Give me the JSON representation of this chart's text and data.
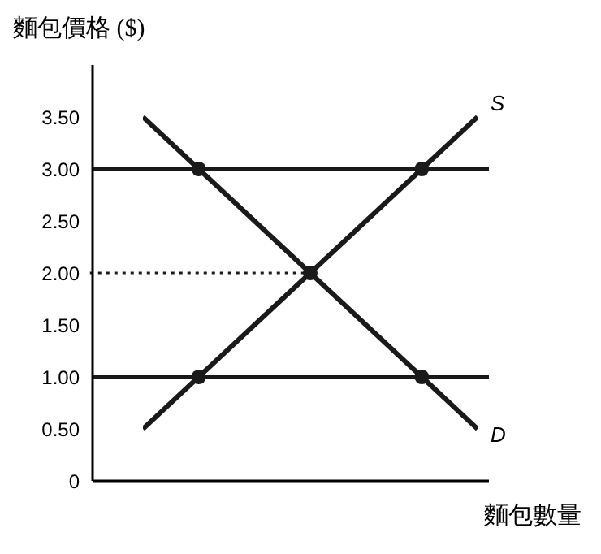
{
  "chart_data": {
    "type": "line",
    "ylabel": "麵包價格 ($)",
    "xlabel": "麵包數量",
    "categories": [
      null,
      null,
      null,
      null,
      null,
      null,
      null
    ],
    "series": [
      {
        "color": "#1a1a1a",
        "values": [
          0.5,
          1.0,
          1.5,
          2.0,
          2.5,
          3.0,
          3.5
        ]
      },
      {
        "color": "#1a1a1a",
        "values": [
          3.5,
          3.0,
          2.5,
          2.0,
          1.5,
          1.0,
          0.5
        ]
      },
      {
        "type": "scatter",
        "marker": "circle",
        "color": "#1a1a1a",
        "values": [
          null,
          3.0,
          null,
          2.0,
          null,
          3.0,
          null
        ]
      },
      {
        "type": "scatter",
        "marker": "circle",
        "color": "#1a1a1a",
        "values": [
          null,
          1.0,
          null,
          null,
          null,
          1.0,
          null
        ]
      }
    ],
    "annotations": [
      "S",
      "D"
    ],
    "ylim": [
      0,
      4
    ],
    "yticks": [
      0,
      {
        "value": 0.5,
        "label": "0.50"
      },
      {
        "value": 1,
        "label": "1.00"
      },
      {
        "value": 1.5,
        "label": "1.50"
      },
      {
        "value": 2,
        "label": "2.00"
      },
      {
        "value": 2.5,
        "label": "2.50"
      },
      {
        "value": 3,
        "label": "3.00"
      },
      {
        "value": 3.5,
        "label": "3.50"
      }
    ],
    "tick_labels": "y",
    "ref_lines": [
      {
        "axis": "y",
        "value": 3,
        "color": "#1a1a1a",
        "line_style": "solid"
      },
      {
        "axis": "y",
        "value": 1,
        "color": "#1a1a1a",
        "line_style": "solid"
      },
      {
        "axis": "y",
        "value": 2,
        "color": "#1a1a1a",
        "line_style": "dotted"
      }
    ],
    "grid": false,
    "legend": false,
    "line_style": "solid",
    "marker": "none"
  }
}
